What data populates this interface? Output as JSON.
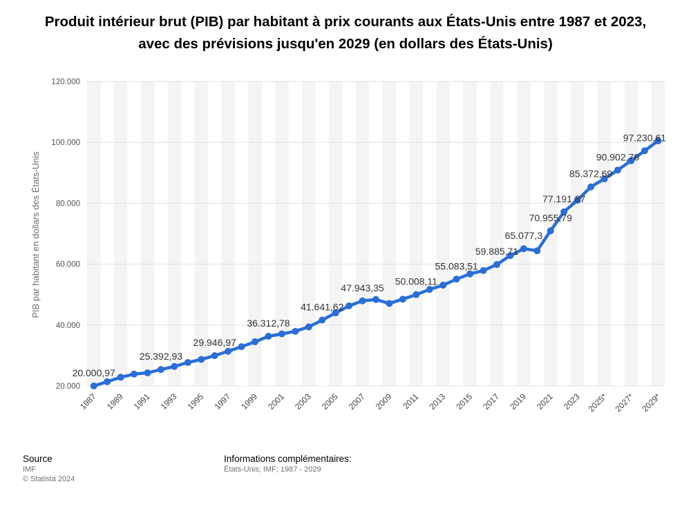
{
  "title": "Produit intérieur brut (PIB) par habitant à prix courants aux États-Unis entre 1987 et 2023, avec des prévisions jusqu'en 2029 (en dollars des États-Unis)",
  "chart_data": {
    "type": "line",
    "title": "Produit intérieur brut (PIB) par habitant à prix courants aux États-Unis entre 1987 et 2023, avec des prévisions jusqu'en 2029 (en dollars des États-Unis)",
    "ylabel": "PIB par habitant en dollars des États-Unis",
    "xlabel": "",
    "ylim": [
      20000,
      120000
    ],
    "yticks": [
      "20.000",
      "40.000",
      "60.000",
      "80.000",
      "100.000",
      "120.000"
    ],
    "categories": [
      "1987",
      "1988",
      "1989",
      "1990",
      "1991",
      "1992",
      "1993",
      "1994",
      "1995",
      "1996",
      "1997",
      "1998",
      "1999",
      "2000",
      "2001",
      "2002",
      "2003",
      "2004",
      "2005",
      "2006",
      "2007",
      "2008",
      "2009",
      "2010",
      "2011",
      "2012",
      "2013",
      "2014",
      "2015",
      "2016",
      "2017",
      "2018",
      "2019",
      "2020",
      "2021",
      "2022",
      "2023",
      "2024*",
      "2025*",
      "2026*",
      "2027*",
      "2028*",
      "2029*"
    ],
    "xtick_labels": [
      "1987",
      "1989",
      "1991",
      "1993",
      "1995",
      "1997",
      "1999",
      "2001",
      "2003",
      "2005",
      "2007",
      "2009",
      "2011",
      "2013",
      "2015",
      "2017",
      "2019",
      "2021",
      "2023",
      "2025*",
      "2027*",
      "2029*"
    ],
    "series": [
      {
        "color": "#2a6ed8",
        "values": [
          20000.97,
          21400,
          22850,
          23900,
          24300,
          25392.93,
          26400,
          27700,
          28700,
          29946.97,
          31400,
          32900,
          34500,
          36312.78,
          37100,
          37950,
          39400,
          41641.62,
          44000,
          46300,
          47943.35,
          48400,
          47100,
          48500,
          50008.11,
          51700,
          53100,
          55083.51,
          56800,
          57900,
          59885.71,
          62800,
          65077.3,
          64400,
          70955.79,
          77191.87,
          81000,
          85372.69,
          88000,
          90902.78,
          94000,
          97230.61,
          100500
        ]
      }
    ],
    "data_labels": [
      {
        "category": "1987",
        "text": "20.000,97"
      },
      {
        "category": "1992",
        "text": "25.392,93"
      },
      {
        "category": "1996",
        "text": "29.946,97"
      },
      {
        "category": "2000",
        "text": "36.312,78"
      },
      {
        "category": "2004",
        "text": "41.641,62"
      },
      {
        "category": "2007",
        "text": "47.943,35"
      },
      {
        "category": "2011",
        "text": "50.008,11"
      },
      {
        "category": "2014",
        "text": "55.083,51"
      },
      {
        "category": "2017",
        "text": "59.885,71"
      },
      {
        "category": "2019",
        "text": "65.077,3"
      },
      {
        "category": "2021",
        "text": "70.955,79"
      },
      {
        "category": "2022",
        "text": "77.191,87"
      },
      {
        "category": "2024*",
        "text": "85.372,69"
      },
      {
        "category": "2026*",
        "text": "90.902,78"
      },
      {
        "category": "2028*",
        "text": "97.230,61"
      }
    ],
    "grid": true,
    "legend": "none"
  },
  "footer": {
    "source_heading": "Source",
    "source_lines": [
      "IMF",
      "© Statista 2024"
    ],
    "info_heading": "Informations complémentaires:",
    "info_text": "États-Unis; IMF; 1987 - 2029"
  }
}
